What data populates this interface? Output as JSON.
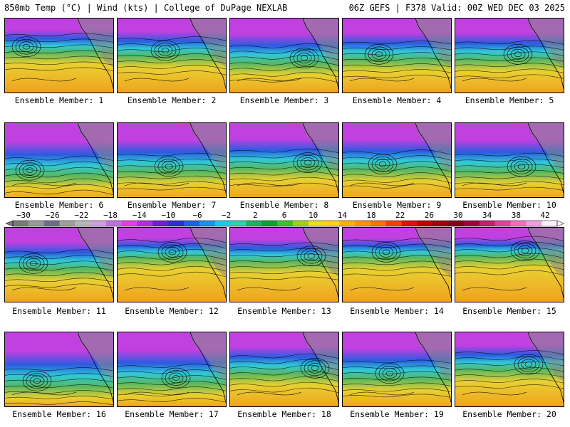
{
  "header": {
    "left": "850mb Temp (°C) | Wind (kts) | College of DuPage NEXLAB",
    "right": "06Z GEFS | F378 Valid: 00Z WED DEC 03 2025"
  },
  "caption_prefix": "Ensemble Member: ",
  "members": [
    {
      "label": "Ensemble Member: 1",
      "cold_extent": 0.45
    },
    {
      "label": "Ensemble Member: 2",
      "cold_extent": 0.5
    },
    {
      "label": "Ensemble Member: 3",
      "cold_extent": 0.6
    },
    {
      "label": "Ensemble Member: 4",
      "cold_extent": 0.55
    },
    {
      "label": "Ensemble Member: 5",
      "cold_extent": 0.55
    },
    {
      "label": "Ensemble Member: 6",
      "cold_extent": 0.7
    },
    {
      "label": "Ensemble Member: 7",
      "cold_extent": 0.65
    },
    {
      "label": "Ensemble Member: 8",
      "cold_extent": 0.6
    },
    {
      "label": "Ensemble Member: 9",
      "cold_extent": 0.62
    },
    {
      "label": "Ensemble Member: 10",
      "cold_extent": 0.65
    },
    {
      "label": "Ensemble Member: 11",
      "cold_extent": 0.55
    },
    {
      "label": "Ensemble Member: 12",
      "cold_extent": 0.4
    },
    {
      "label": "Ensemble Member: 13",
      "cold_extent": 0.45
    },
    {
      "label": "Ensemble Member: 14",
      "cold_extent": 0.4
    },
    {
      "label": "Ensemble Member: 15",
      "cold_extent": 0.38
    },
    {
      "label": "Ensemble Member: 16",
      "cold_extent": 0.72
    },
    {
      "label": "Ensemble Member: 17",
      "cold_extent": 0.68
    },
    {
      "label": "Ensemble Member: 18",
      "cold_extent": 0.55
    },
    {
      "label": "Ensemble Member: 19",
      "cold_extent": 0.62
    },
    {
      "label": "Ensemble Member: 20",
      "cold_extent": 0.5
    }
  ],
  "colorbar": {
    "ticks": [
      "-30",
      "-26",
      "-22",
      "-18",
      "-14",
      "-10",
      "-6",
      "-2",
      "2",
      "6",
      "10",
      "14",
      "18",
      "22",
      "26",
      "30",
      "34",
      "38",
      "42"
    ],
    "colors": [
      "#7a7a7a",
      "#9a9a9a",
      "#6e6e8a",
      "#a0a0a0",
      "#b8b8b8",
      "#d0a0e0",
      "#c070e0",
      "#e040e0",
      "#b030e0",
      "#7020d0",
      "#3030d0",
      "#2060e0",
      "#2090e8",
      "#20c8e8",
      "#30d0b0",
      "#20b060",
      "#10a030",
      "#40c030",
      "#a0d020",
      "#e8e020",
      "#ffd020",
      "#ffb010",
      "#ff9010",
      "#ff7010",
      "#f04010",
      "#e01010",
      "#c00000",
      "#a00010",
      "#800020",
      "#a00040",
      "#c02070",
      "#e040a0",
      "#f070c0",
      "#f0a0e0",
      "#fff0ff"
    ]
  },
  "field_colors": {
    "purple": "#c040e0",
    "blue": "#2a5ce0",
    "cyan": "#30c8d8",
    "green": "#58b860",
    "yellow": "#e8d030",
    "orange": "#f0a020",
    "gray": "#8a8a8a"
  }
}
